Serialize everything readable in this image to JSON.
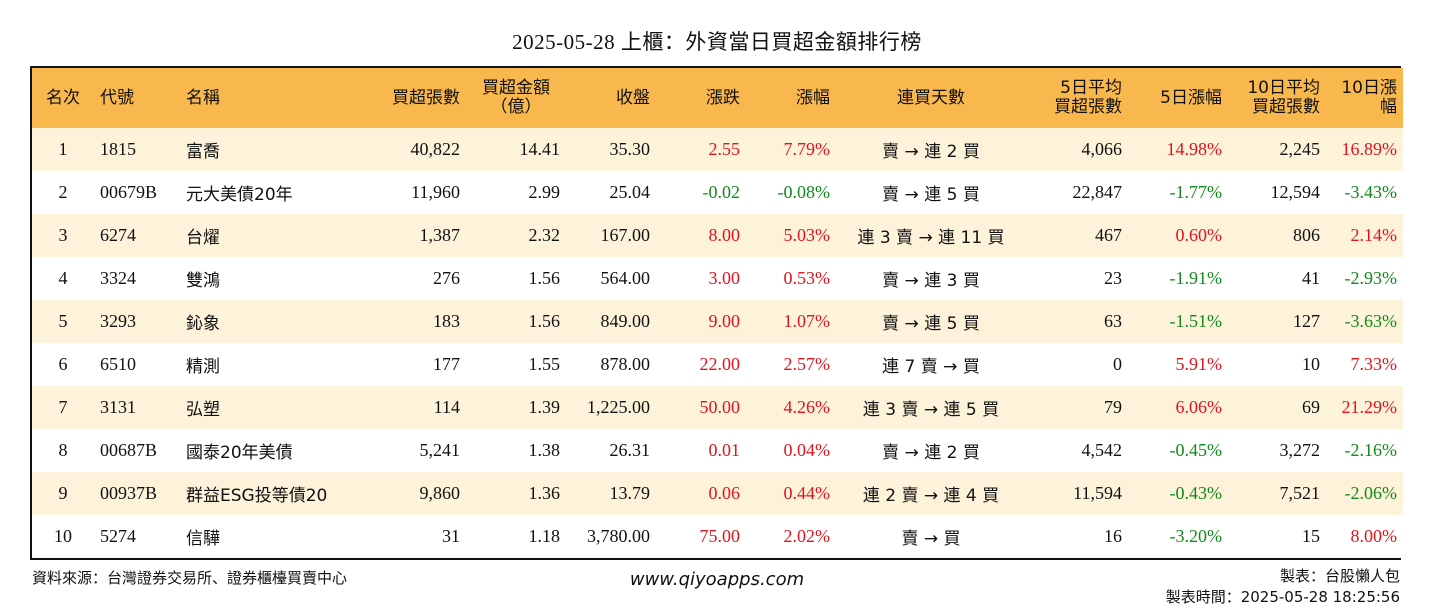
{
  "title": "2025-05-28 上櫃：外資當日買超金額排行榜",
  "headers": {
    "rank": "名次",
    "code": "代號",
    "name": "名稱",
    "buy_lots": "買超張數",
    "buy_amt_1": "買超金額",
    "buy_amt_2": "（億）",
    "close": "收盤",
    "change": "漲跌",
    "pct": "漲幅",
    "streak": "連買天數",
    "avg5_1": "5日平均",
    "avg5_2": "買超張數",
    "pct5": "5日漲幅",
    "avg10_1": "10日平均",
    "avg10_2": "買超張數",
    "pct10": "10日漲幅"
  },
  "rows": [
    {
      "rank": "1",
      "code": "1815",
      "name": "富喬",
      "lots": "40,822",
      "amt": "14.41",
      "close": "35.30",
      "chg": "2.55",
      "pct": "7.79%",
      "streak": "賣 → 連 2 買",
      "avg5": "4,066",
      "pct5": "14.98%",
      "avg10": "2,245",
      "pct10": "16.89%"
    },
    {
      "rank": "2",
      "code": "00679B",
      "name": "元大美債20年",
      "lots": "11,960",
      "amt": "2.99",
      "close": "25.04",
      "chg": "-0.02",
      "pct": "-0.08%",
      "streak": "賣 → 連 5 買",
      "avg5": "22,847",
      "pct5": "-1.77%",
      "avg10": "12,594",
      "pct10": "-3.43%"
    },
    {
      "rank": "3",
      "code": "6274",
      "name": "台燿",
      "lots": "1,387",
      "amt": "2.32",
      "close": "167.00",
      "chg": "8.00",
      "pct": "5.03%",
      "streak": "連 3 賣 → 連 11 買",
      "avg5": "467",
      "pct5": "0.60%",
      "avg10": "806",
      "pct10": "2.14%"
    },
    {
      "rank": "4",
      "code": "3324",
      "name": "雙鴻",
      "lots": "276",
      "amt": "1.56",
      "close": "564.00",
      "chg": "3.00",
      "pct": "0.53%",
      "streak": "賣 → 連 3 買",
      "avg5": "23",
      "pct5": "-1.91%",
      "avg10": "41",
      "pct10": "-2.93%"
    },
    {
      "rank": "5",
      "code": "3293",
      "name": "鈊象",
      "lots": "183",
      "amt": "1.56",
      "close": "849.00",
      "chg": "9.00",
      "pct": "1.07%",
      "streak": "賣 → 連 5 買",
      "avg5": "63",
      "pct5": "-1.51%",
      "avg10": "127",
      "pct10": "-3.63%"
    },
    {
      "rank": "6",
      "code": "6510",
      "name": "精測",
      "lots": "177",
      "amt": "1.55",
      "close": "878.00",
      "chg": "22.00",
      "pct": "2.57%",
      "streak": "連 7 賣 → 買",
      "avg5": "0",
      "pct5": "5.91%",
      "avg10": "10",
      "pct10": "7.33%"
    },
    {
      "rank": "7",
      "code": "3131",
      "name": "弘塑",
      "lots": "114",
      "amt": "1.39",
      "close": "1,225.00",
      "chg": "50.00",
      "pct": "4.26%",
      "streak": "連 3 賣 → 連 5 買",
      "avg5": "79",
      "pct5": "6.06%",
      "avg10": "69",
      "pct10": "21.29%"
    },
    {
      "rank": "8",
      "code": "00687B",
      "name": "國泰20年美債",
      "lots": "5,241",
      "amt": "1.38",
      "close": "26.31",
      "chg": "0.01",
      "pct": "0.04%",
      "streak": "賣 → 連 2 買",
      "avg5": "4,542",
      "pct5": "-0.45%",
      "avg10": "3,272",
      "pct10": "-2.16%"
    },
    {
      "rank": "9",
      "code": "00937B",
      "name": "群益ESG投等債20",
      "lots": "9,860",
      "amt": "1.36",
      "close": "13.79",
      "chg": "0.06",
      "pct": "0.44%",
      "streak": "連 2 賣 → 連 4 買",
      "avg5": "11,594",
      "pct5": "-0.43%",
      "avg10": "7,521",
      "pct10": "-2.06%"
    },
    {
      "rank": "10",
      "code": "5274",
      "name": "信驊",
      "lots": "31",
      "amt": "1.18",
      "close": "3,780.00",
      "chg": "75.00",
      "pct": "2.02%",
      "streak": "賣 → 買",
      "avg5": "16",
      "pct5": "-3.20%",
      "avg10": "15",
      "pct10": "8.00%"
    }
  ],
  "footer": {
    "source": "資料來源：台灣證券交易所、證券櫃檯買賣中心",
    "website": "www.qiyoapps.com",
    "maker": "製表：台股懶人包",
    "time": "製表時間：2025-05-28 18:25:56"
  },
  "colors": {
    "header_bg": "#f9b84e",
    "stripe_bg": "#fdf2da",
    "up": "#e0141e",
    "down": "#138a1c"
  }
}
